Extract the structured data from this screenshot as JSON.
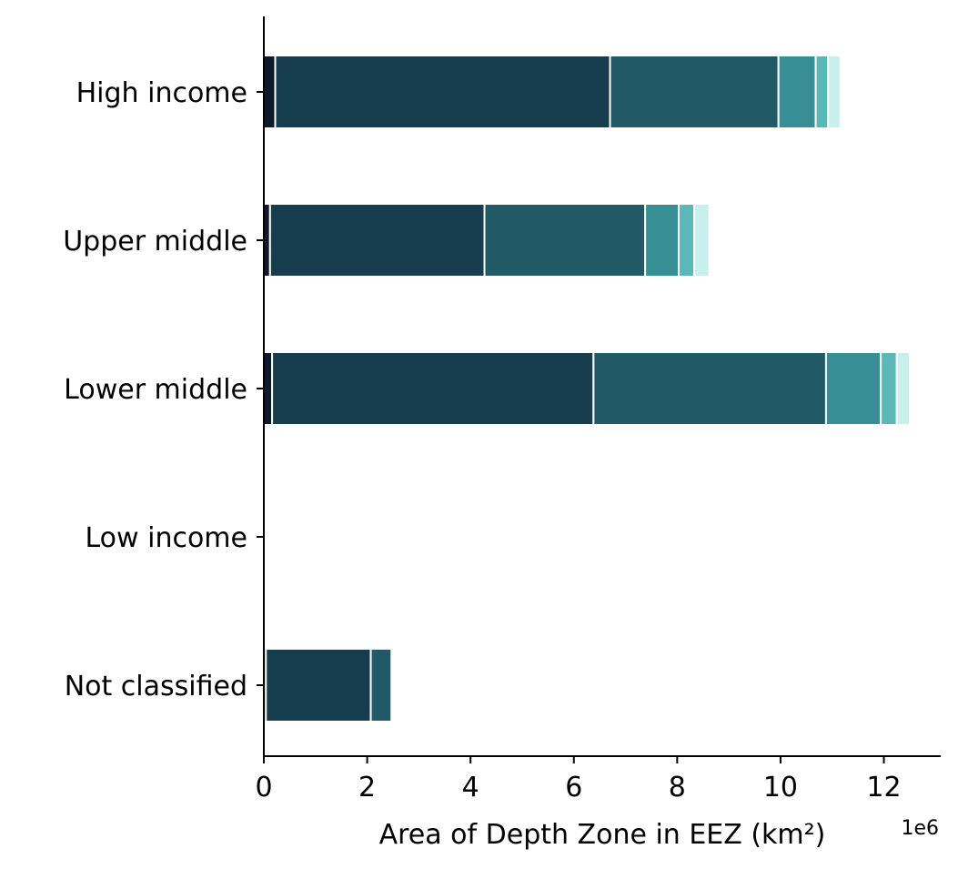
{
  "chart_data": {
    "type": "bar",
    "orientation": "horizontal",
    "stacked": true,
    "categories": [
      "High income",
      "Upper middle",
      "Lower middle",
      "Low income",
      "Not classified"
    ],
    "series": [
      {
        "color": "#0e1a2b",
        "values": [
          220000,
          120000,
          160000,
          0,
          40000
        ]
      },
      {
        "color": "#173e4e",
        "values": [
          6480000,
          4150000,
          6220000,
          0,
          2030000
        ]
      },
      {
        "color": "#215a66",
        "values": [
          3260000,
          3110000,
          4500000,
          0,
          400000
        ]
      },
      {
        "color": "#388e95",
        "values": [
          720000,
          650000,
          1060000,
          0,
          0
        ]
      },
      {
        "color": "#5bb7b8",
        "values": [
          240000,
          300000,
          310000,
          0,
          0
        ]
      },
      {
        "color": "#c8efeb",
        "values": [
          240000,
          290000,
          250000,
          0,
          0
        ]
      }
    ],
    "xlabel": "Area of Depth Zone in EEZ (km²)",
    "x_offset_label": "1e6",
    "x_ticks": [
      0,
      2,
      4,
      6,
      8,
      10,
      12
    ],
    "x_tick_scale": 1000000,
    "xlim": [
      0,
      13100000
    ],
    "grid": false,
    "legend": "none"
  }
}
